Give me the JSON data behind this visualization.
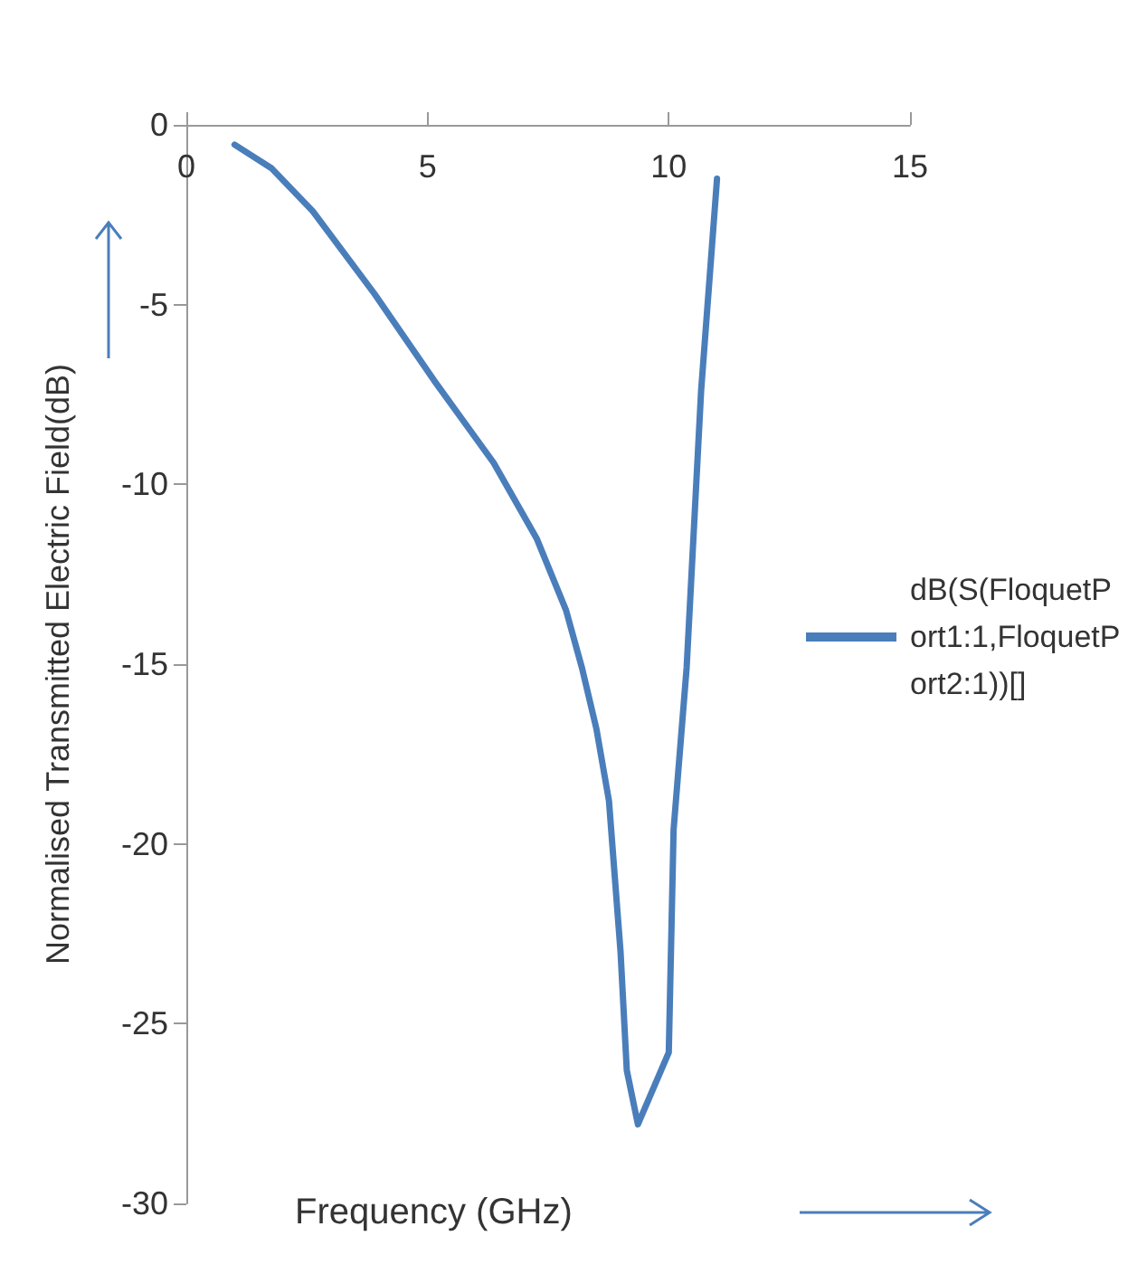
{
  "chart_data": {
    "type": "line",
    "xlabel": "Frequency (GHz)",
    "ylabel": "Normalised Transmitted Electric Field(dB)",
    "x": [
      1.0,
      1.76,
      2.62,
      3.9,
      5.13,
      6.37,
      7.26,
      7.87,
      8.2,
      8.5,
      8.76,
      9.0,
      9.13,
      9.36,
      10.0,
      10.1,
      10.37,
      10.67,
      11.0
    ],
    "series": [
      {
        "name": "dB(S(FloquetPort1:1,FloquetPort2:1))[]",
        "color": "#4a7ebb",
        "values": [
          -0.55,
          -1.2,
          -2.4,
          -4.7,
          -7.1,
          -9.4,
          -11.5,
          -13.5,
          -15.1,
          -16.8,
          -18.8,
          -23.0,
          -26.3,
          -27.8,
          -25.8,
          -19.6,
          -15.1,
          -7.4,
          -1.5
        ]
      }
    ],
    "xlim": [
      0,
      15
    ],
    "xticks": [
      0,
      5,
      10,
      15
    ],
    "ylim": [
      -30,
      0
    ],
    "yticks": [
      -30,
      -25,
      -20,
      -15,
      -10,
      -5,
      0
    ],
    "grid": false,
    "legend": "right",
    "marker": "none",
    "line_style": "solid"
  }
}
